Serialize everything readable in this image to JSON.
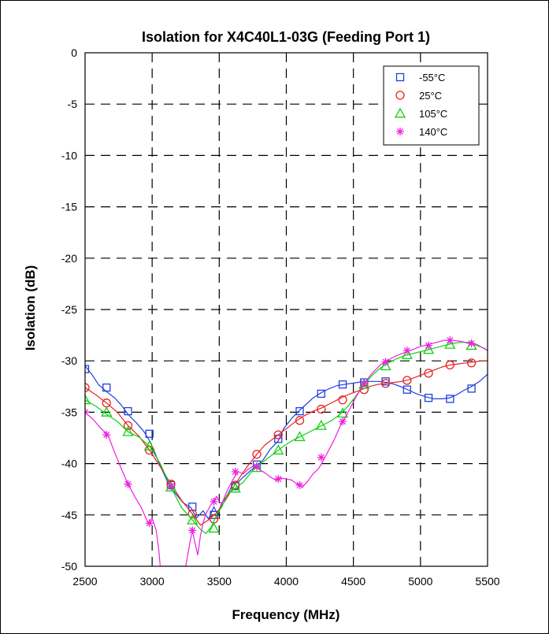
{
  "chart_data": {
    "type": "line",
    "title": "Isolation for X4C40L1-03G (Feeding Port 1)",
    "xlabel": "Frequency (MHz)",
    "ylabel": "Isolation (dB)",
    "xlim": [
      2500,
      5500
    ],
    "ylim": [
      -50,
      0
    ],
    "xticks": [
      2500,
      3000,
      3500,
      4000,
      4500,
      5000,
      5500
    ],
    "yticks": [
      0,
      -5,
      -10,
      -15,
      -20,
      -25,
      -30,
      -35,
      -40,
      -45,
      -50
    ],
    "grid": true,
    "grid_style": "dashed",
    "legend_position": "top-right",
    "series": [
      {
        "name": "-55°C",
        "color": "#1f3fe0",
        "marker": "square",
        "x": [
          2500,
          2550,
          2600,
          2660,
          2720,
          2770,
          2820,
          2880,
          2940,
          2990,
          3040,
          3080,
          3130,
          3180,
          3230,
          3290,
          3330,
          3380,
          3420,
          3460,
          3490,
          3520,
          3560,
          3600,
          3640,
          3690,
          3740,
          3780,
          3830,
          3880,
          3940,
          3980,
          4040,
          4100,
          4150,
          4200,
          4260,
          4320,
          4380,
          4430,
          4480,
          4530,
          4580,
          4630,
          4690,
          4750,
          4810,
          4870,
          4920,
          4970,
          5040,
          5100,
          5160,
          5220,
          5270,
          5320,
          5380,
          5440,
          5500
        ],
        "y": [
          -30.5,
          -31.3,
          -32.3,
          -33.0,
          -33.6,
          -34.3,
          -35.2,
          -36.0,
          -36.9,
          -38.0,
          -39.6,
          -40.8,
          -42.2,
          -43.0,
          -43.8,
          -44.3,
          -45.3,
          -44.6,
          -45.4,
          -44.2,
          -45.0,
          -43.8,
          -43.1,
          -42.0,
          -41.8,
          -41.2,
          -40.6,
          -40.3,
          -39.6,
          -38.6,
          -37.8,
          -36.6,
          -35.6,
          -34.8,
          -34.2,
          -33.6,
          -33.1,
          -32.7,
          -32.4,
          -32.3,
          -32.2,
          -32.1,
          -32.0,
          -32.0,
          -32.0,
          -32.1,
          -32.3,
          -32.6,
          -32.9,
          -33.2,
          -33.5,
          -33.7,
          -33.7,
          -33.6,
          -33.3,
          -32.9,
          -32.5,
          -32.0,
          -31.3
        ],
        "marker_x": [
          2500,
          2660,
          2820,
          2980,
          3140,
          3300,
          3460,
          3620,
          3780,
          3940,
          4100,
          4260,
          4420,
          4580,
          4740,
          4900,
          5060,
          5220,
          5380
        ],
        "marker_y": [
          -30.8,
          -32.6,
          -34.9,
          -37.1,
          -42.1,
          -44.2,
          -45.0,
          -42.2,
          -40.1,
          -37.6,
          -34.9,
          -33.2,
          -32.3,
          -32.1,
          -32.0,
          -32.8,
          -33.6,
          -33.7,
          -32.7
        ]
      },
      {
        "name": "25°C",
        "color": "#e82020",
        "marker": "circle",
        "x": [
          2500,
          2580,
          2660,
          2740,
          2820,
          2900,
          2980,
          3060,
          3140,
          3220,
          3300,
          3360,
          3420,
          3480,
          3540,
          3600,
          3660,
          3720,
          3780,
          3840,
          3900,
          3960,
          4020,
          4080,
          4140,
          4200,
          4260,
          4320,
          4380,
          4440,
          4500,
          4560,
          4620,
          4680,
          4740,
          4800,
          4860,
          4920,
          4980,
          5040,
          5100,
          5160,
          5220,
          5280,
          5340,
          5400,
          5460,
          5500
        ],
        "y": [
          -32.6,
          -33.3,
          -34.1,
          -35.0,
          -36.3,
          -37.3,
          -38.7,
          -40.3,
          -42.0,
          -43.6,
          -44.9,
          -46.0,
          -45.5,
          -44.8,
          -43.7,
          -42.4,
          -41.2,
          -40.1,
          -39.1,
          -38.2,
          -37.6,
          -37.0,
          -36.4,
          -35.8,
          -35.3,
          -34.9,
          -34.6,
          -34.2,
          -33.8,
          -33.4,
          -33.1,
          -32.8,
          -32.5,
          -32.3,
          -32.2,
          -32.1,
          -32.0,
          -31.8,
          -31.5,
          -31.2,
          -30.9,
          -30.6,
          -30.4,
          -30.3,
          -30.2,
          -30.1,
          -30.0,
          -30.0
        ],
        "marker_x": [
          2500,
          2660,
          2820,
          2980,
          3140,
          3300,
          3460,
          3620,
          3780,
          3940,
          4100,
          4260,
          4420,
          4580,
          4740,
          4900,
          5060,
          5220,
          5380
        ],
        "marker_y": [
          -32.6,
          -34.1,
          -36.3,
          -38.7,
          -42.0,
          -44.9,
          -45.4,
          -42.1,
          -39.1,
          -37.2,
          -35.8,
          -34.7,
          -33.8,
          -32.8,
          -32.2,
          -31.9,
          -31.2,
          -30.4,
          -30.2
        ]
      },
      {
        "name": "105°C",
        "color": "#10d010",
        "marker": "triangle",
        "x": [
          2500,
          2580,
          2660,
          2740,
          2820,
          2900,
          2980,
          3060,
          3140,
          3220,
          3300,
          3360,
          3400,
          3440,
          3480,
          3520,
          3560,
          3620,
          3680,
          3740,
          3800,
          3860,
          3920,
          3980,
          4040,
          4100,
          4160,
          4220,
          4280,
          4340,
          4400,
          4460,
          4520,
          4580,
          4640,
          4700,
          4760,
          4820,
          4880,
          4940,
          5000,
          5060,
          5120,
          5180,
          5240,
          5300,
          5360,
          5420,
          5500
        ],
        "y": [
          -33.8,
          -34.4,
          -35.2,
          -35.9,
          -36.9,
          -37.4,
          -38.3,
          -40.0,
          -42.3,
          -44.3,
          -45.5,
          -46.4,
          -46.8,
          -46.2,
          -45.0,
          -44.2,
          -43.0,
          -42.4,
          -41.8,
          -40.8,
          -40.1,
          -39.5,
          -38.9,
          -38.3,
          -37.8,
          -37.4,
          -37.0,
          -36.6,
          -36.2,
          -35.8,
          -35.2,
          -34.4,
          -33.4,
          -32.3,
          -31.4,
          -30.7,
          -30.2,
          -29.8,
          -29.5,
          -29.3,
          -29.1,
          -28.9,
          -28.7,
          -28.5,
          -28.3,
          -28.2,
          -28.2,
          -28.4,
          -29.0
        ],
        "marker_x": [
          2500,
          2660,
          2820,
          2980,
          3140,
          3300,
          3460,
          3620,
          3780,
          3940,
          4100,
          4260,
          4420,
          4580,
          4740,
          4900,
          5060,
          5220,
          5380
        ],
        "marker_y": [
          -33.8,
          -35.0,
          -36.9,
          -38.3,
          -42.3,
          -45.5,
          -46.3,
          -42.4,
          -40.4,
          -38.7,
          -37.4,
          -36.3,
          -35.1,
          -32.3,
          -30.5,
          -29.4,
          -28.9,
          -28.4,
          -28.5
        ]
      },
      {
        "name": "140°C",
        "color": "#ee20e0",
        "marker": "asterisk",
        "x": [
          2500,
          2560,
          2620,
          2670,
          2720,
          2770,
          2820,
          2870,
          2920,
          2970,
          3000,
          3030,
          3050,
          3060,
          3250,
          3280,
          3300,
          3320,
          3340,
          3360,
          3380,
          3400,
          3430,
          3460,
          3480,
          3500,
          3520,
          3560,
          3600,
          3640,
          3680,
          3720,
          3760,
          3800,
          3840,
          3880,
          3920,
          3960,
          4000,
          4040,
          4080,
          4120,
          4160,
          4200,
          4240,
          4280,
          4320,
          4360,
          4400,
          4460,
          4520,
          4580,
          4640,
          4700,
          4760,
          4820,
          4880,
          4940,
          5000,
          5060,
          5120,
          5180,
          5240,
          5300,
          5360,
          5420,
          5480,
          5500
        ],
        "y": [
          -35.0,
          -35.7,
          -36.6,
          -37.2,
          -38.9,
          -40.5,
          -42.0,
          -43.2,
          -44.3,
          -45.8,
          -45.3,
          -46.5,
          -48.5,
          -50.0,
          -50.0,
          -47.8,
          -46.5,
          -47.8,
          -48.9,
          -47.0,
          -45.8,
          -44.9,
          -44.2,
          -43.6,
          -43.2,
          -43.7,
          -43.9,
          -42.6,
          -41.6,
          -40.8,
          -41.0,
          -40.5,
          -40.2,
          -40.6,
          -40.9,
          -41.3,
          -41.6,
          -41.4,
          -41.5,
          -41.6,
          -42.0,
          -42.3,
          -41.7,
          -41.0,
          -40.5,
          -39.6,
          -38.6,
          -37.6,
          -36.4,
          -35.0,
          -33.5,
          -32.2,
          -31.2,
          -30.4,
          -29.9,
          -29.5,
          -29.2,
          -28.9,
          -28.6,
          -28.4,
          -28.2,
          -28.0,
          -28.0,
          -28.1,
          -28.3,
          -28.5,
          -28.8,
          -29.0
        ],
        "marker_x": [
          2500,
          2660,
          2820,
          2980,
          3140,
          3300,
          3460,
          3620,
          3780,
          3940,
          4100,
          4260,
          4420,
          4580,
          4740,
          4900,
          5060,
          5220,
          5380
        ],
        "marker_y": [
          -35.0,
          -37.2,
          -42.0,
          -45.8,
          -42.2,
          -46.5,
          -43.7,
          -40.8,
          -40.3,
          -41.5,
          -42.1,
          -39.4,
          -35.9,
          -32.2,
          -30.1,
          -29.0,
          -28.5,
          -28.0,
          -28.3
        ]
      }
    ]
  }
}
